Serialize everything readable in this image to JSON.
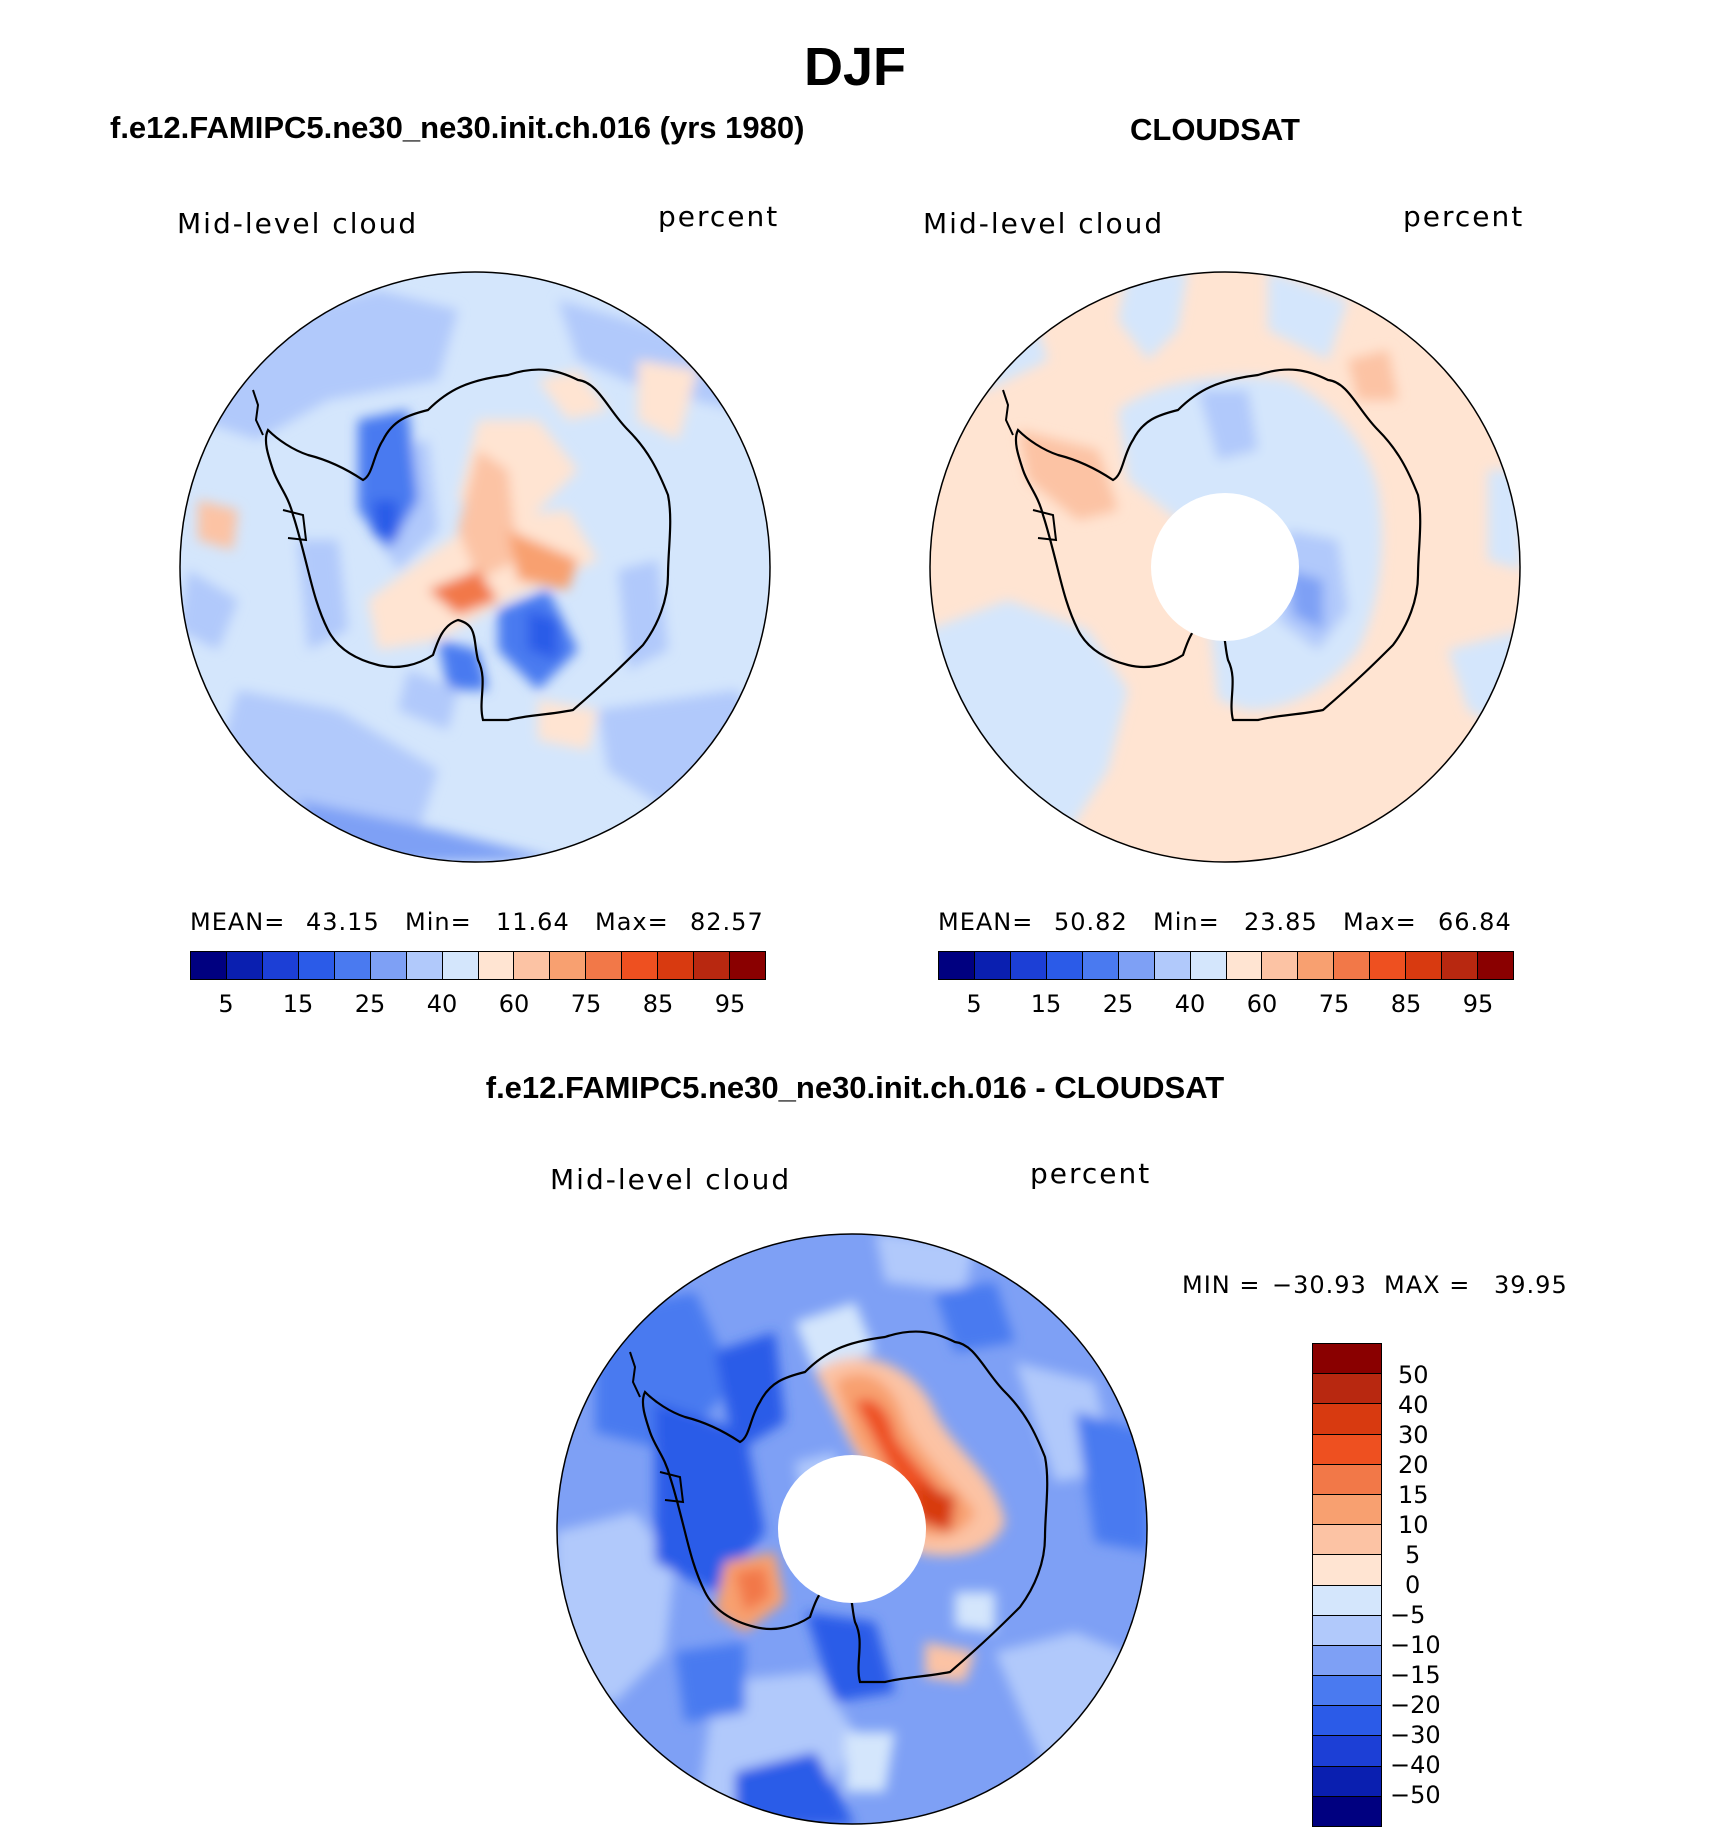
{
  "figure": {
    "season": "DJF",
    "left_title": "f.e12.FAMIPC5.ne30_ne30.init.ch.016 (yrs 1980)",
    "right_title": "CLOUDSAT",
    "diff_title": "f.e12.FAMIPC5.ne30_ne30.init.ch.016 - CLOUDSAT"
  },
  "colors": {
    "abs_scale": [
      "#000080",
      "#0a1fb0",
      "#1c3fd6",
      "#2b5be8",
      "#4a7af0",
      "#7ea0f5",
      "#b1c9fb",
      "#d4e6fc",
      "#ffe4d2",
      "#fcc3a4",
      "#f8a070",
      "#f27848",
      "#ee5020",
      "#d83a10",
      "#b82810",
      "#8a0000"
    ],
    "diff_scale": [
      "#8a0000",
      "#b82810",
      "#d83a10",
      "#ee5020",
      "#f27848",
      "#f8a070",
      "#fcc3a4",
      "#ffe4d2",
      "#d4e6fc",
      "#b1c9fb",
      "#7ea0f5",
      "#4a7af0",
      "#2b5be8",
      "#1c3fd6",
      "#0a1fb0",
      "#000080"
    ]
  },
  "chart_data": [
    {
      "type": "heatmap",
      "projection": "south-polar-stereographic",
      "title": "f.e12.FAMIPC5.ne30_ne30.init.ch.016 (yrs 1980)",
      "left_label": "Mid-level cloud",
      "right_label": "percent",
      "mean_label": "MEAN=",
      "mean": "43.15",
      "min_label": "Min=",
      "min": "11.64",
      "max_label": "Max=",
      "max": "82.57",
      "colorbar_labels": [
        "5",
        "15",
        "25",
        "40",
        "60",
        "75",
        "85",
        "95"
      ],
      "colorbar_bins": 16
    },
    {
      "type": "heatmap",
      "projection": "south-polar-stereographic",
      "title": "CLOUDSAT",
      "left_label": "Mid-level cloud",
      "right_label": "percent",
      "mean_label": "MEAN=",
      "mean": "50.82",
      "min_label": "Min=",
      "min": "23.85",
      "max_label": "Max=",
      "max": "66.84",
      "colorbar_labels": [
        "5",
        "15",
        "25",
        "40",
        "60",
        "75",
        "85",
        "95"
      ],
      "colorbar_bins": 16
    },
    {
      "type": "heatmap",
      "projection": "south-polar-stereographic",
      "title": "f.e12.FAMIPC5.ne30_ne30.init.ch.016 - CLOUDSAT",
      "left_label": "Mid-level cloud",
      "right_label": "percent",
      "min_label": "MIN =",
      "min": "−30.93",
      "max_label": "MAX =",
      "max": "39.95",
      "colorbar_labels": [
        "50",
        "40",
        "30",
        "20",
        "15",
        "10",
        "5",
        "0",
        "−5",
        "−10",
        "−15",
        "−20",
        "−30",
        "−40",
        "−50"
      ],
      "colorbar_bins": 16
    }
  ]
}
